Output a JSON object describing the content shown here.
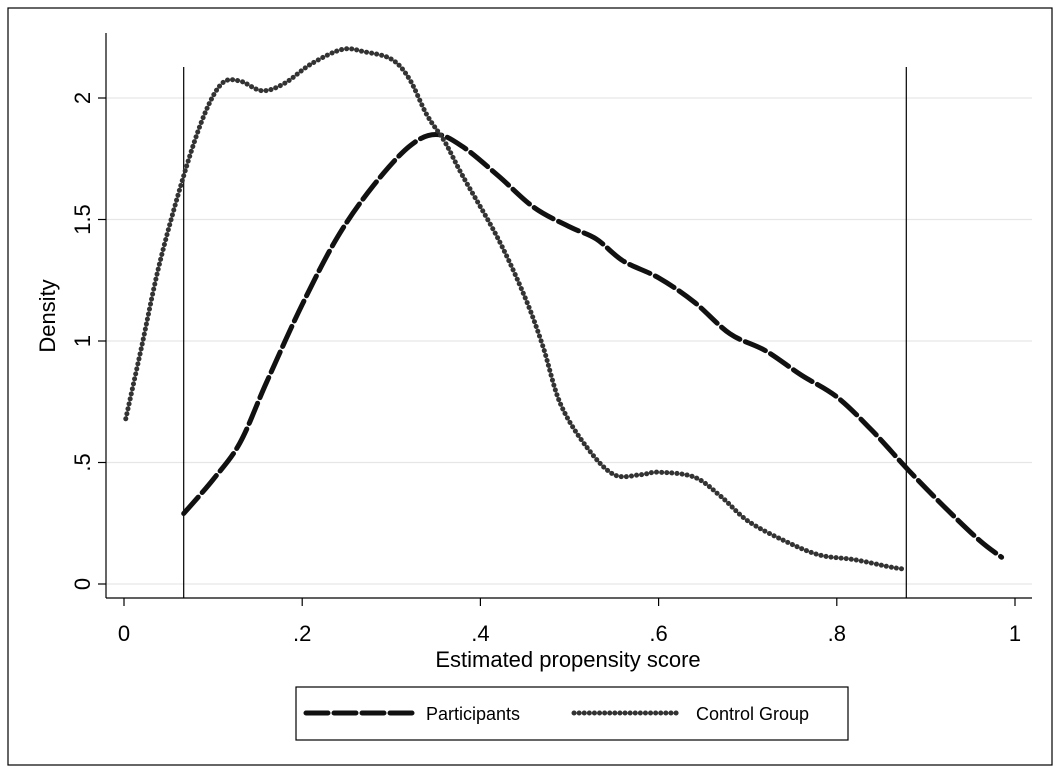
{
  "chart_data": {
    "type": "line",
    "xlabel": "Estimated propensity score",
    "ylabel": "Density",
    "xlim": [
      0,
      1
    ],
    "ylim": [
      0,
      2.2
    ],
    "x_ticks": [
      0,
      0.2,
      0.4,
      0.6,
      0.8,
      1
    ],
    "x_tick_labels": [
      "0",
      ".2",
      ".4",
      ".6",
      ".8",
      "1"
    ],
    "y_ticks": [
      0,
      0.5,
      1,
      1.5,
      2
    ],
    "y_tick_labels": [
      "0",
      ".5",
      "1",
      "1.5",
      "2"
    ],
    "grid": "horizontal",
    "legend_position": "bottom",
    "vertical_lines": [
      0.067,
      0.878
    ],
    "series": [
      {
        "name": "Participants",
        "style": "dashed",
        "color": "#111111",
        "points": [
          [
            0.067,
            0.29
          ],
          [
            0.1,
            0.43
          ],
          [
            0.13,
            0.58
          ],
          [
            0.16,
            0.83
          ],
          [
            0.2,
            1.15
          ],
          [
            0.24,
            1.43
          ],
          [
            0.28,
            1.64
          ],
          [
            0.32,
            1.8
          ],
          [
            0.35,
            1.85
          ],
          [
            0.38,
            1.8
          ],
          [
            0.42,
            1.68
          ],
          [
            0.46,
            1.55
          ],
          [
            0.5,
            1.47
          ],
          [
            0.53,
            1.42
          ],
          [
            0.56,
            1.33
          ],
          [
            0.6,
            1.26
          ],
          [
            0.64,
            1.16
          ],
          [
            0.68,
            1.03
          ],
          [
            0.72,
            0.96
          ],
          [
            0.76,
            0.86
          ],
          [
            0.8,
            0.77
          ],
          [
            0.84,
            0.63
          ],
          [
            0.88,
            0.47
          ],
          [
            0.92,
            0.32
          ],
          [
            0.96,
            0.18
          ],
          [
            0.985,
            0.11
          ]
        ]
      },
      {
        "name": "Control Group",
        "style": "dotted",
        "color": "#333333",
        "points": [
          [
            0.002,
            0.68
          ],
          [
            0.02,
            0.98
          ],
          [
            0.04,
            1.32
          ],
          [
            0.067,
            1.68
          ],
          [
            0.09,
            1.93
          ],
          [
            0.11,
            2.06
          ],
          [
            0.13,
            2.07
          ],
          [
            0.155,
            2.03
          ],
          [
            0.18,
            2.06
          ],
          [
            0.21,
            2.14
          ],
          [
            0.245,
            2.2
          ],
          [
            0.27,
            2.19
          ],
          [
            0.3,
            2.16
          ],
          [
            0.32,
            2.08
          ],
          [
            0.34,
            1.93
          ],
          [
            0.36,
            1.82
          ],
          [
            0.38,
            1.68
          ],
          [
            0.42,
            1.42
          ],
          [
            0.45,
            1.18
          ],
          [
            0.47,
            0.98
          ],
          [
            0.49,
            0.74
          ],
          [
            0.52,
            0.56
          ],
          [
            0.55,
            0.45
          ],
          [
            0.58,
            0.45
          ],
          [
            0.6,
            0.46
          ],
          [
            0.64,
            0.44
          ],
          [
            0.67,
            0.36
          ],
          [
            0.7,
            0.26
          ],
          [
            0.74,
            0.18
          ],
          [
            0.78,
            0.12
          ],
          [
            0.82,
            0.1
          ],
          [
            0.86,
            0.07
          ],
          [
            0.878,
            0.06
          ]
        ]
      }
    ]
  }
}
